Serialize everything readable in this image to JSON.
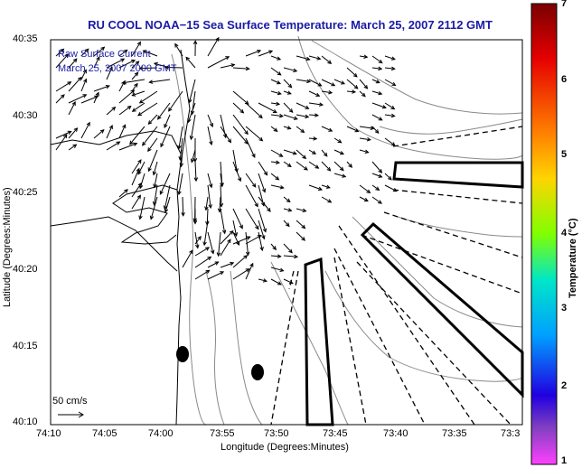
{
  "title": "RU COOL  NOAA−15  Sea Surface Temperature:  March 25, 2007 2112 GMT",
  "legend": {
    "line1": "Raw Surface Current",
    "line2": "March 25, 2007 2000 GMT",
    "scale_label": "50 cm/s"
  },
  "axes": {
    "xlabel": "Longitude (Degrees:Minutes)",
    "ylabel": "Latitude (Degrees:Minutes)",
    "xticks": [
      "74:10",
      "74:05",
      "74:00",
      "73:55",
      "73:50",
      "73:45",
      "73:40",
      "73:35",
      "73:3"
    ],
    "yticks": [
      "40:35",
      "40:30",
      "40:25",
      "40:20",
      "40:15",
      "40:10"
    ]
  },
  "colorbar": {
    "label": "Temperature (°C)",
    "ticks": [
      "7",
      "6",
      "5",
      "4",
      "3",
      "2",
      "1"
    ],
    "range": [
      1,
      7
    ]
  },
  "colors": {
    "title": "#1a1aa6",
    "vectors": "#000000",
    "coast": "#000000",
    "contours": "#8a8a8a"
  }
}
